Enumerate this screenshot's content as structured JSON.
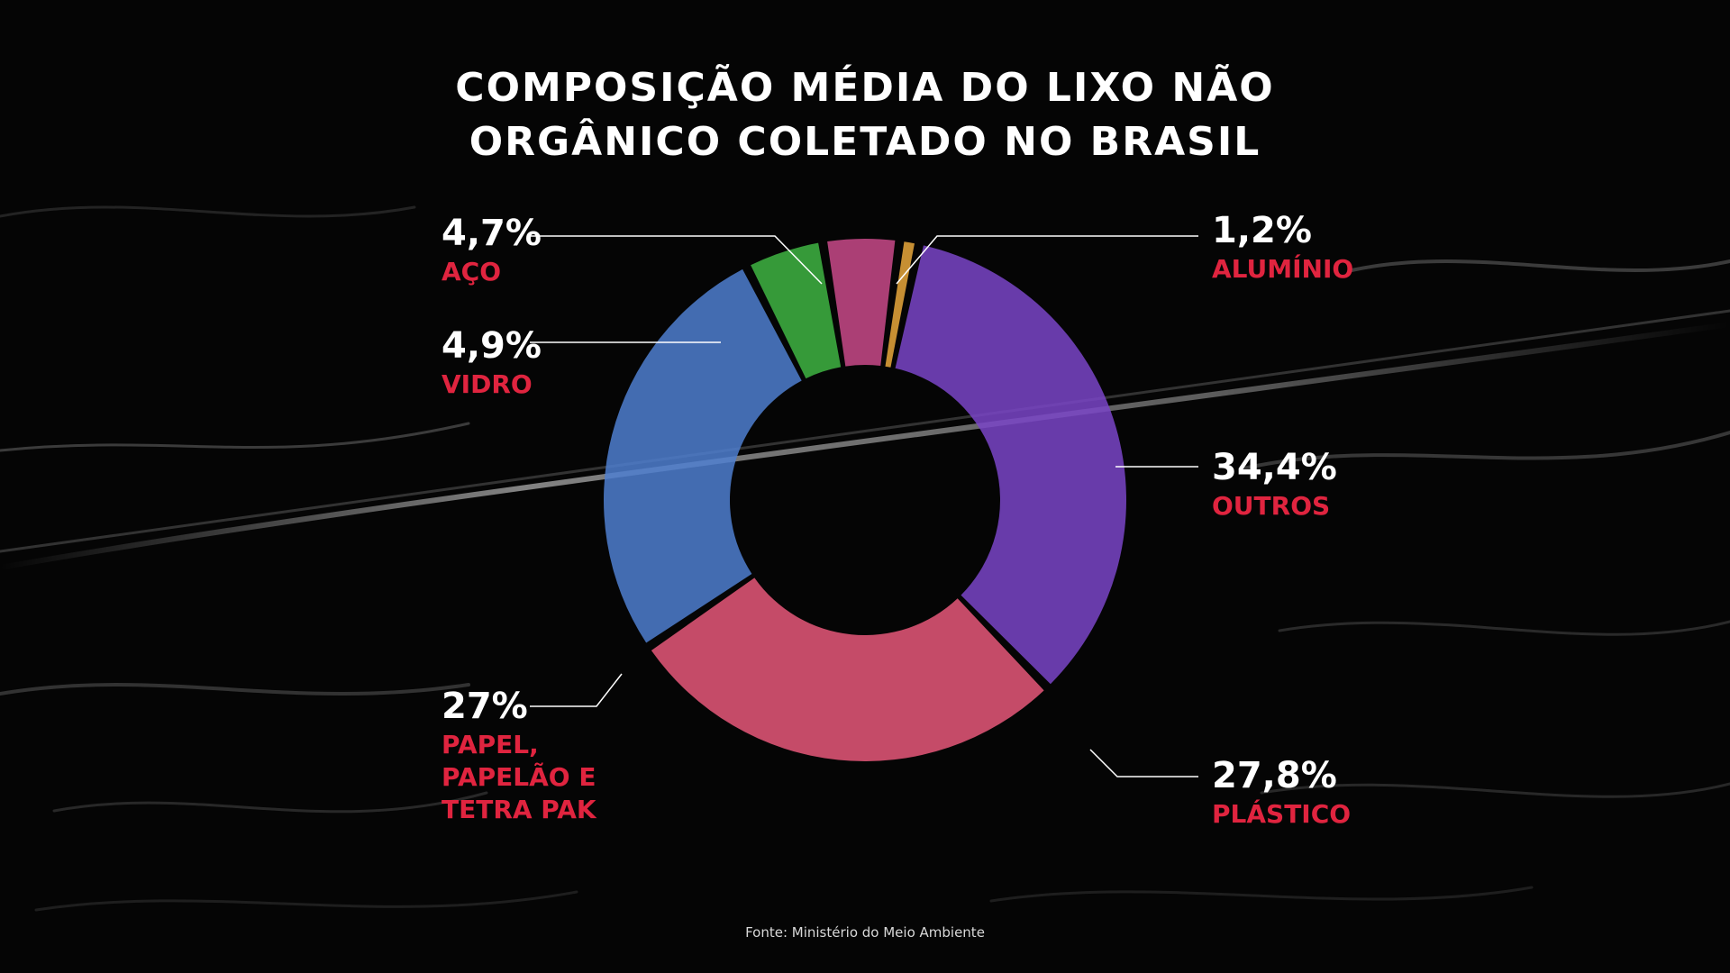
{
  "title": {
    "line1": "COMPOSIÇÃO MÉDIA DO LIXO NÃO",
    "line2": "ORGÂNICO COLETADO NO BRASIL"
  },
  "source": "Fonte: Ministério do Meio Ambiente",
  "colors": {
    "background": "#050505",
    "label_value": "#ffffff",
    "label_name": "#e0243f",
    "aco": "#c94a8a",
    "aluminio": "#e9a83c",
    "outros": "#7a45c8",
    "plastico": "#e8587a",
    "papel": "#4f7fd0",
    "vidro": "#3fb543"
  },
  "chart_data": {
    "type": "pie",
    "style": "donut",
    "title": "COMPOSIÇÃO MÉDIA DO LIXO NÃO ORGÂNICO COLETADO NO BRASIL",
    "slices": [
      {
        "label": "AÇO",
        "value": 4.7,
        "value_text": "4,7%",
        "color": "#c94a8a"
      },
      {
        "label": "ALUMÍNIO",
        "value": 1.2,
        "value_text": "1,2%",
        "color": "#e9a83c"
      },
      {
        "label": "OUTROS",
        "value": 34.4,
        "value_text": "34,4%",
        "color": "#7a45c8"
      },
      {
        "label": "PLÁSTICO",
        "value": 27.8,
        "value_text": "27,8%",
        "color": "#e8587a"
      },
      {
        "label": "PAPEL, PAPELÃO E TETRA PAK",
        "value": 27.0,
        "value_text": "27%",
        "color": "#4f7fd0"
      },
      {
        "label": "VIDRO",
        "value": 4.9,
        "value_text": "4,9%",
        "color": "#3fb543"
      }
    ],
    "labels": {
      "aco": {
        "value_text": "4,7%",
        "lines": [
          "AÇO"
        ]
      },
      "vidro": {
        "value_text": "4,9%",
        "lines": [
          "VIDRO"
        ]
      },
      "papel": {
        "value_text": "27%",
        "lines": [
          "PAPEL,",
          "PAPELÃO E",
          "TETRA PAK"
        ]
      },
      "aluminio": {
        "value_text": "1,2%",
        "lines": [
          "ALUMÍNIO"
        ]
      },
      "outros": {
        "value_text": "34,4%",
        "lines": [
          "OUTROS"
        ]
      },
      "plastico": {
        "value_text": "27,8%",
        "lines": [
          "PLÁSTICO"
        ]
      }
    }
  }
}
